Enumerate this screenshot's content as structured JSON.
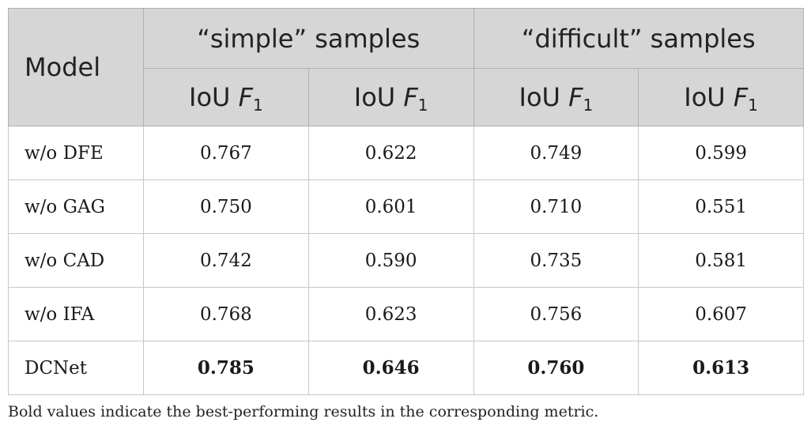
{
  "table": {
    "header": {
      "model_label": "Model",
      "groups": [
        "“simple” samples",
        "“difficult” samples"
      ],
      "metric_prefix": "IoU",
      "metric_symbol": "F",
      "metric_subscript": "1"
    },
    "rows": [
      {
        "model": "w/o DFE",
        "values": [
          "0.767",
          "0.622",
          "0.749",
          "0.599"
        ],
        "best": false
      },
      {
        "model": "w/o GAG",
        "values": [
          "0.750",
          "0.601",
          "0.710",
          "0.551"
        ],
        "best": false
      },
      {
        "model": "w/o CAD",
        "values": [
          "0.742",
          "0.590",
          "0.735",
          "0.581"
        ],
        "best": false
      },
      {
        "model": "w/o IFA",
        "values": [
          "0.768",
          "0.623",
          "0.756",
          "0.607"
        ],
        "best": false
      },
      {
        "model": "DCNet",
        "values": [
          "0.785",
          "0.646",
          "0.760",
          "0.613"
        ],
        "best": true
      }
    ]
  },
  "footnote": "Bold values indicate the best-performing results in the corresponding metric."
}
